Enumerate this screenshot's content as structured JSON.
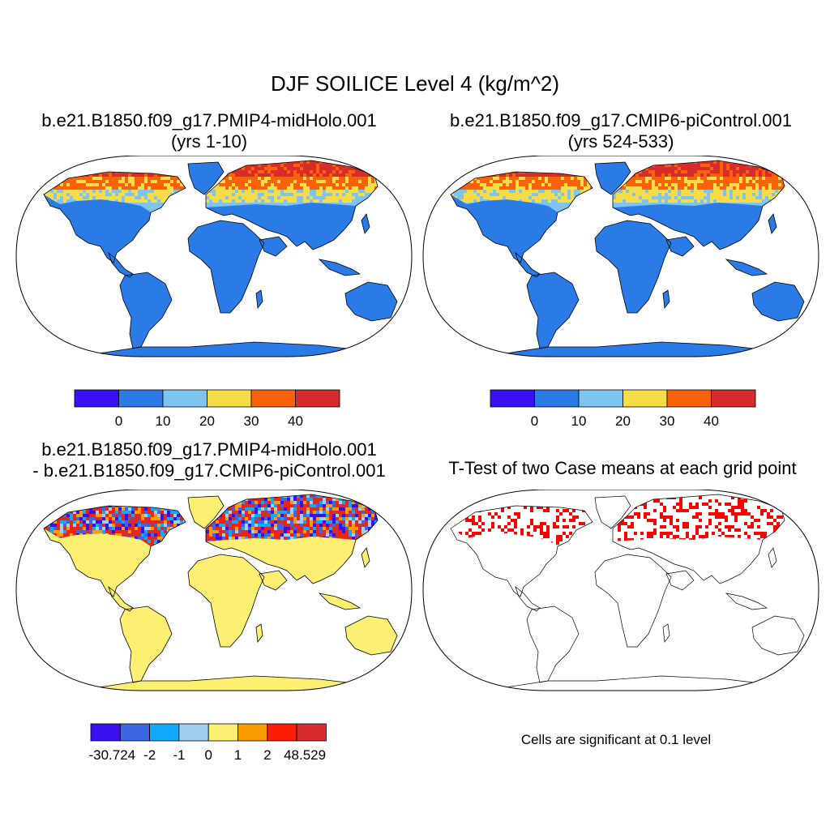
{
  "title": "DJF SOILICE Level 4 (kg/m^2)",
  "panels": [
    {
      "line1": "b.e21.B1850.f09_g17.PMIP4-midHolo.001",
      "line2": "(yrs 1-10)"
    },
    {
      "line1": "b.e21.B1850.f09_g17.CMIP6-piControl.001",
      "line2": "(yrs 524-533)"
    },
    {
      "line1": "b.e21.B1850.f09_g17.PMIP4-midHolo.001",
      "line2": "- b.e21.B1850.f09_g17.CMIP6-piControl.001"
    },
    {
      "line1": "T-Test of two Case means at each grid point",
      "note": "Cells are significant at 0.1 level"
    }
  ],
  "colorbars": {
    "abs": {
      "colors": [
        "#3a10f0",
        "#2b7be6",
        "#7ec4ee",
        "#f6dc48",
        "#fa620a",
        "#d62c2c"
      ],
      "labels": [
        "0",
        "10",
        "20",
        "30",
        "40"
      ]
    },
    "diff": {
      "colors": [
        "#3a10f0",
        "#3c67e0",
        "#10a8f8",
        "#9ed0ee",
        "#fcef72",
        "#fc9c04",
        "#fc1d04",
        "#d62c2c"
      ],
      "labels": [
        "-30.724",
        "-2",
        "-1",
        "0",
        "1",
        "2",
        "48.529"
      ]
    }
  },
  "map_colors": {
    "land_abs": "#2b7be6",
    "land_diff": "#fcef72",
    "significant": "#ff0000",
    "coast": "#000000"
  }
}
